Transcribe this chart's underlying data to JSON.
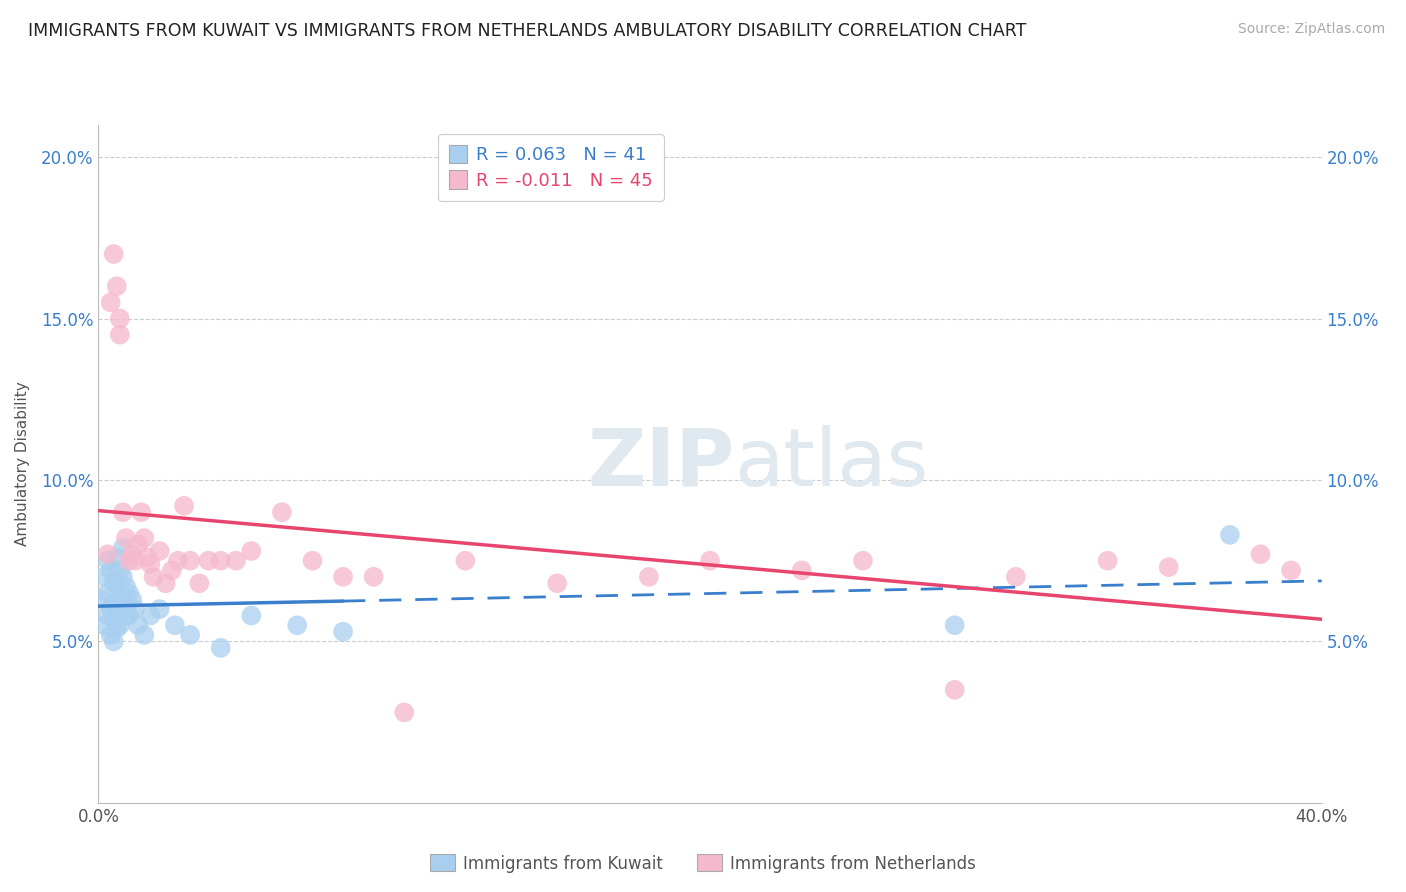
{
  "title": "IMMIGRANTS FROM KUWAIT VS IMMIGRANTS FROM NETHERLANDS AMBULATORY DISABILITY CORRELATION CHART",
  "source": "Source: ZipAtlas.com",
  "ylabel": "Ambulatory Disability",
  "xlim": [
    0.0,
    0.4
  ],
  "ylim": [
    0.0,
    0.21
  ],
  "yticks": [
    0.05,
    0.1,
    0.15,
    0.2
  ],
  "ytick_labels": [
    "5.0%",
    "10.0%",
    "15.0%",
    "20.0%"
  ],
  "legend1_label": "R = 0.063   N = 41",
  "legend2_label": "R = -0.011   N = 45",
  "series1_name": "Immigrants from Kuwait",
  "series2_name": "Immigrants from Netherlands",
  "series1_color": "#a8cff0",
  "series2_color": "#f5b8cc",
  "series1_line_color": "#3a7fcc",
  "series2_line_color": "#e8456e",
  "background_color": "#ffffff",
  "kuwait_x": [
    0.001,
    0.002,
    0.002,
    0.003,
    0.003,
    0.003,
    0.004,
    0.004,
    0.004,
    0.005,
    0.005,
    0.005,
    0.005,
    0.006,
    0.006,
    0.006,
    0.006,
    0.007,
    0.007,
    0.007,
    0.008,
    0.008,
    0.008,
    0.009,
    0.009,
    0.01,
    0.01,
    0.011,
    0.012,
    0.013,
    0.015,
    0.017,
    0.02,
    0.025,
    0.03,
    0.04,
    0.05,
    0.065,
    0.08,
    0.28,
    0.37
  ],
  "kuwait_y": [
    0.063,
    0.07,
    0.055,
    0.075,
    0.065,
    0.058,
    0.072,
    0.06,
    0.052,
    0.068,
    0.062,
    0.057,
    0.05,
    0.076,
    0.068,
    0.06,
    0.054,
    0.072,
    0.063,
    0.055,
    0.079,
    0.07,
    0.062,
    0.067,
    0.058,
    0.065,
    0.058,
    0.063,
    0.06,
    0.055,
    0.052,
    0.058,
    0.06,
    0.055,
    0.052,
    0.048,
    0.058,
    0.055,
    0.053,
    0.055,
    0.083
  ],
  "netherlands_x": [
    0.003,
    0.004,
    0.005,
    0.006,
    0.007,
    0.007,
    0.008,
    0.009,
    0.01,
    0.011,
    0.012,
    0.013,
    0.014,
    0.015,
    0.016,
    0.017,
    0.018,
    0.02,
    0.022,
    0.024,
    0.026,
    0.028,
    0.03,
    0.033,
    0.036,
    0.04,
    0.045,
    0.05,
    0.06,
    0.07,
    0.08,
    0.09,
    0.1,
    0.12,
    0.15,
    0.18,
    0.2,
    0.23,
    0.25,
    0.28,
    0.3,
    0.33,
    0.35,
    0.38,
    0.39
  ],
  "netherlands_y": [
    0.077,
    0.155,
    0.17,
    0.16,
    0.15,
    0.145,
    0.09,
    0.082,
    0.075,
    0.077,
    0.075,
    0.08,
    0.09,
    0.082,
    0.076,
    0.074,
    0.07,
    0.078,
    0.068,
    0.072,
    0.075,
    0.092,
    0.075,
    0.068,
    0.075,
    0.075,
    0.075,
    0.078,
    0.09,
    0.075,
    0.07,
    0.07,
    0.028,
    0.075,
    0.068,
    0.07,
    0.075,
    0.072,
    0.075,
    0.035,
    0.07,
    0.075,
    0.073,
    0.077,
    0.072
  ]
}
